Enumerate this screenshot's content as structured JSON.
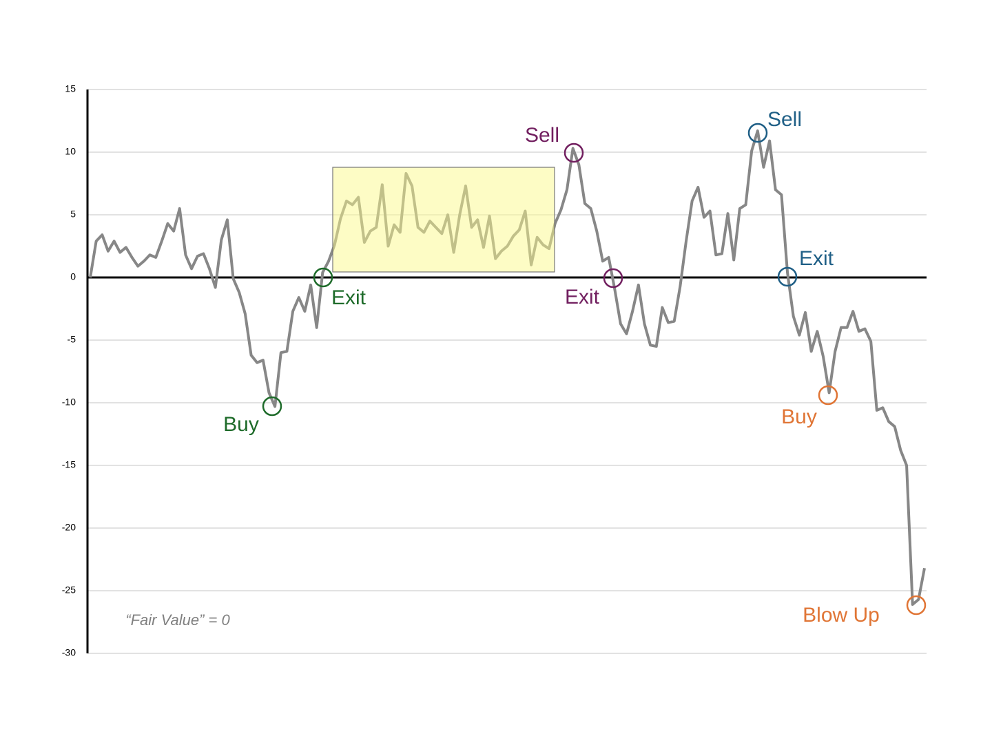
{
  "chart_data": {
    "type": "line",
    "values": [
      0,
      2.9,
      3.4,
      2.1,
      2.9,
      2.0,
      2.4,
      1.6,
      0.9,
      1.3,
      1.8,
      1.6,
      2.9,
      4.3,
      3.7,
      5.5,
      1.8,
      0.7,
      1.7,
      1.9,
      0.7,
      -0.8,
      3.0,
      4.6,
      -0.1,
      -1.2,
      -2.9,
      -6.2,
      -6.8,
      -6.6,
      -9.2,
      -10.3,
      -6.0,
      -5.9,
      -2.7,
      -1.6,
      -2.7,
      -0.6,
      -4.0,
      0.4,
      1.3,
      2.6,
      4.7,
      6.1,
      5.8,
      6.4,
      2.8,
      3.7,
      4.0,
      7.4,
      2.5,
      4.2,
      3.6,
      8.3,
      7.3,
      4.0,
      3.6,
      4.5,
      4.0,
      3.5,
      5.0,
      2.0,
      5.0,
      7.3,
      4.0,
      4.6,
      2.4,
      4.9,
      1.5,
      2.1,
      2.5,
      3.3,
      3.8,
      5.3,
      1.0,
      3.2,
      2.6,
      2.3,
      4.3,
      5.4,
      7.0,
      10.3,
      9.0,
      5.9,
      5.5,
      3.7,
      1.3,
      1.6,
      -0.9,
      -3.7,
      -4.5,
      -2.7,
      -0.6,
      -3.7,
      -5.4,
      -5.5,
      -2.4,
      -3.6,
      -3.5,
      -0.7,
      2.9,
      6.1,
      7.2,
      4.8,
      5.3,
      1.8,
      1.9,
      5.1,
      1.4,
      5.5,
      5.8,
      10.1,
      11.7,
      8.8,
      10.9,
      7.0,
      6.6,
      0.4,
      -3.1,
      -4.6,
      -2.8,
      -5.9,
      -4.3,
      -6.3,
      -9.2,
      -5.9,
      -4.0,
      -4.0,
      -2.7,
      -4.3,
      -4.1,
      -5.1,
      -10.6,
      -10.4,
      -11.5,
      -11.9,
      -13.8,
      -15.0,
      -26.1,
      -25.7,
      -23.2
    ],
    "color": "#878787",
    "ylim": [
      -30,
      15
    ],
    "yticks": [
      -30,
      -25,
      -20,
      -15,
      -10,
      -5,
      0,
      5,
      10,
      15
    ],
    "grid": true,
    "annotations": [
      {
        "text": "Buy",
        "color": "#1e6b2a"
      },
      {
        "text": "Exit",
        "color": "#1e6b2a"
      },
      {
        "text": "Sell",
        "color": "#722060"
      },
      {
        "text": "Exit",
        "color": "#722060"
      },
      {
        "text": "Sell",
        "color": "#1f5f86"
      },
      {
        "text": "Exit",
        "color": "#1f5f86"
      },
      {
        "text": "Buy",
        "color": "#e07535"
      },
      {
        "text": "Blow Up",
        "color": "#e07535"
      }
    ],
    "note": "“Fair Value” = 0"
  }
}
